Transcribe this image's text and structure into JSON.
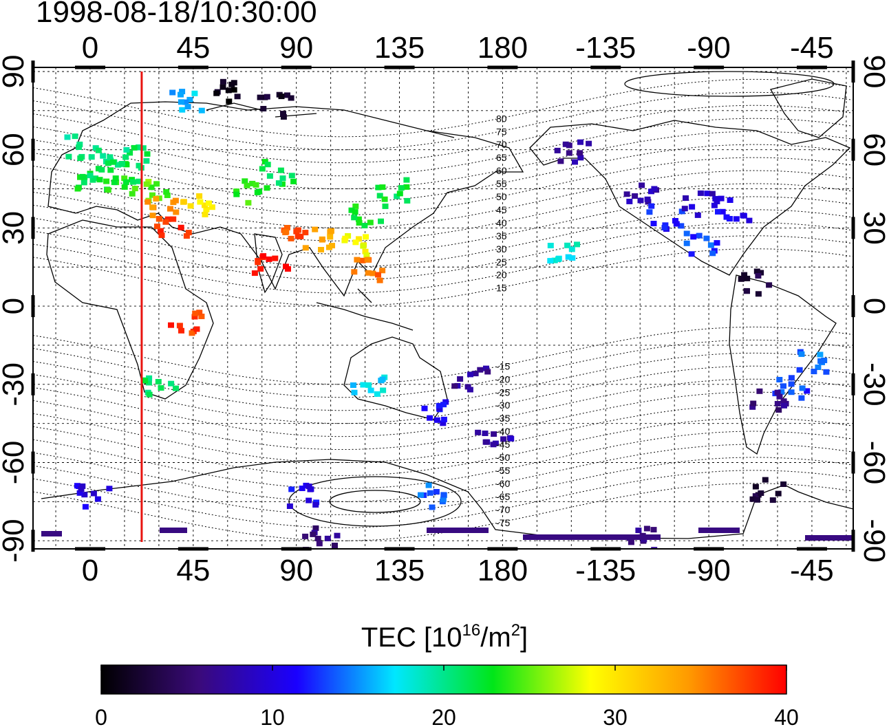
{
  "title": "1998-08-18/10:30:00",
  "map": {
    "lon_ticks": [
      "0",
      "45",
      "90",
      "135",
      "180",
      "-135",
      "-90",
      "-45"
    ],
    "lat_ticks": [
      "90",
      "60",
      "30",
      "0",
      "-30",
      "-60",
      "-90"
    ],
    "contour_labels": [
      "80",
      "75",
      "70",
      "65",
      "60",
      "55",
      "50",
      "45",
      "40",
      "35",
      "30",
      "25",
      "20",
      "15",
      "-15",
      "-20",
      "-25",
      "-30",
      "-35",
      "-40",
      "-45",
      "-50",
      "-55",
      "-60",
      "-65",
      "-70",
      "-75"
    ],
    "local_time_marker": {
      "longitude": 22.5,
      "color": "#e8130f"
    },
    "tec_patches": [
      {
        "lon": 0,
        "lat": 50,
        "tec": 22
      },
      {
        "lon": 5,
        "lat": 55,
        "tec": 21
      },
      {
        "lon": 10,
        "lat": 48,
        "tec": 23
      },
      {
        "lon": 15,
        "lat": 52,
        "tec": 22
      },
      {
        "lon": 20,
        "lat": 58,
        "tec": 21
      },
      {
        "lon": -5,
        "lat": 62,
        "tec": 20
      },
      {
        "lon": 25,
        "lat": 45,
        "tec": 25
      },
      {
        "lon": 30,
        "lat": 38,
        "tec": 35
      },
      {
        "lon": 35,
        "lat": 32,
        "tec": 38
      },
      {
        "lon": 45,
        "lat": 40,
        "tec": 30
      },
      {
        "lon": 70,
        "lat": 45,
        "tec": 24
      },
      {
        "lon": 80,
        "lat": 52,
        "tec": 22
      },
      {
        "lon": 90,
        "lat": 28,
        "tec": 37
      },
      {
        "lon": 100,
        "lat": 26,
        "tec": 34
      },
      {
        "lon": 78,
        "lat": 18,
        "tec": 39
      },
      {
        "lon": 120,
        "lat": 35,
        "tec": 23
      },
      {
        "lon": 130,
        "lat": 45,
        "tec": 22
      },
      {
        "lon": 115,
        "lat": 25,
        "tec": 29
      },
      {
        "lon": 120,
        "lat": 15,
        "tec": 36
      },
      {
        "lon": 40,
        "lat": -5,
        "tec": 38
      },
      {
        "lon": 30,
        "lat": -30,
        "tec": 21
      },
      {
        "lon": 120,
        "lat": -30,
        "tec": 17
      },
      {
        "lon": 150,
        "lat": -40,
        "tec": 11
      },
      {
        "lon": 165,
        "lat": -27,
        "tec": 7
      },
      {
        "lon": 175,
        "lat": -50,
        "tec": 8
      },
      {
        "lon": -150,
        "lat": 60,
        "tec": 7
      },
      {
        "lon": -120,
        "lat": 45,
        "tec": 8
      },
      {
        "lon": -110,
        "lat": 35,
        "tec": 12
      },
      {
        "lon": -95,
        "lat": 40,
        "tec": 9
      },
      {
        "lon": -80,
        "lat": 38,
        "tec": 11
      },
      {
        "lon": -95,
        "lat": 25,
        "tec": 13
      },
      {
        "lon": -155,
        "lat": 22,
        "tec": 18
      },
      {
        "lon": -70,
        "lat": 10,
        "tec": 3
      },
      {
        "lon": -45,
        "lat": -20,
        "tec": 14
      },
      {
        "lon": -55,
        "lat": -30,
        "tec": 13
      },
      {
        "lon": -65,
        "lat": -35,
        "tec": 6
      },
      {
        "lon": -65,
        "lat": -70,
        "tec": 3
      },
      {
        "lon": 0,
        "lat": -72,
        "tec": 10
      },
      {
        "lon": 90,
        "lat": -72,
        "tec": 11
      },
      {
        "lon": 150,
        "lat": -72,
        "tec": 14
      },
      {
        "lon": 100,
        "lat": -88,
        "tec": 6
      },
      {
        "lon": -120,
        "lat": -88,
        "tec": 6
      },
      {
        "lon": 40,
        "lat": 80,
        "tec": 16
      },
      {
        "lon": 60,
        "lat": 84,
        "tec": 1
      },
      {
        "lon": 80,
        "lat": 78,
        "tec": 2
      }
    ]
  },
  "colorbar": {
    "label_main": "TEC  [10",
    "label_exp1": "16",
    "label_mid": "/m",
    "label_exp2": "2",
    "label_end": "]",
    "min": 0,
    "max": 40,
    "ticks": [
      "0",
      "10",
      "20",
      "30",
      "40"
    ],
    "stops": [
      "#000000",
      "#3a0a7a",
      "#1a00ff",
      "#00e7ff",
      "#00e619",
      "#ffff00",
      "#ff9a00",
      "#ff0000"
    ]
  }
}
